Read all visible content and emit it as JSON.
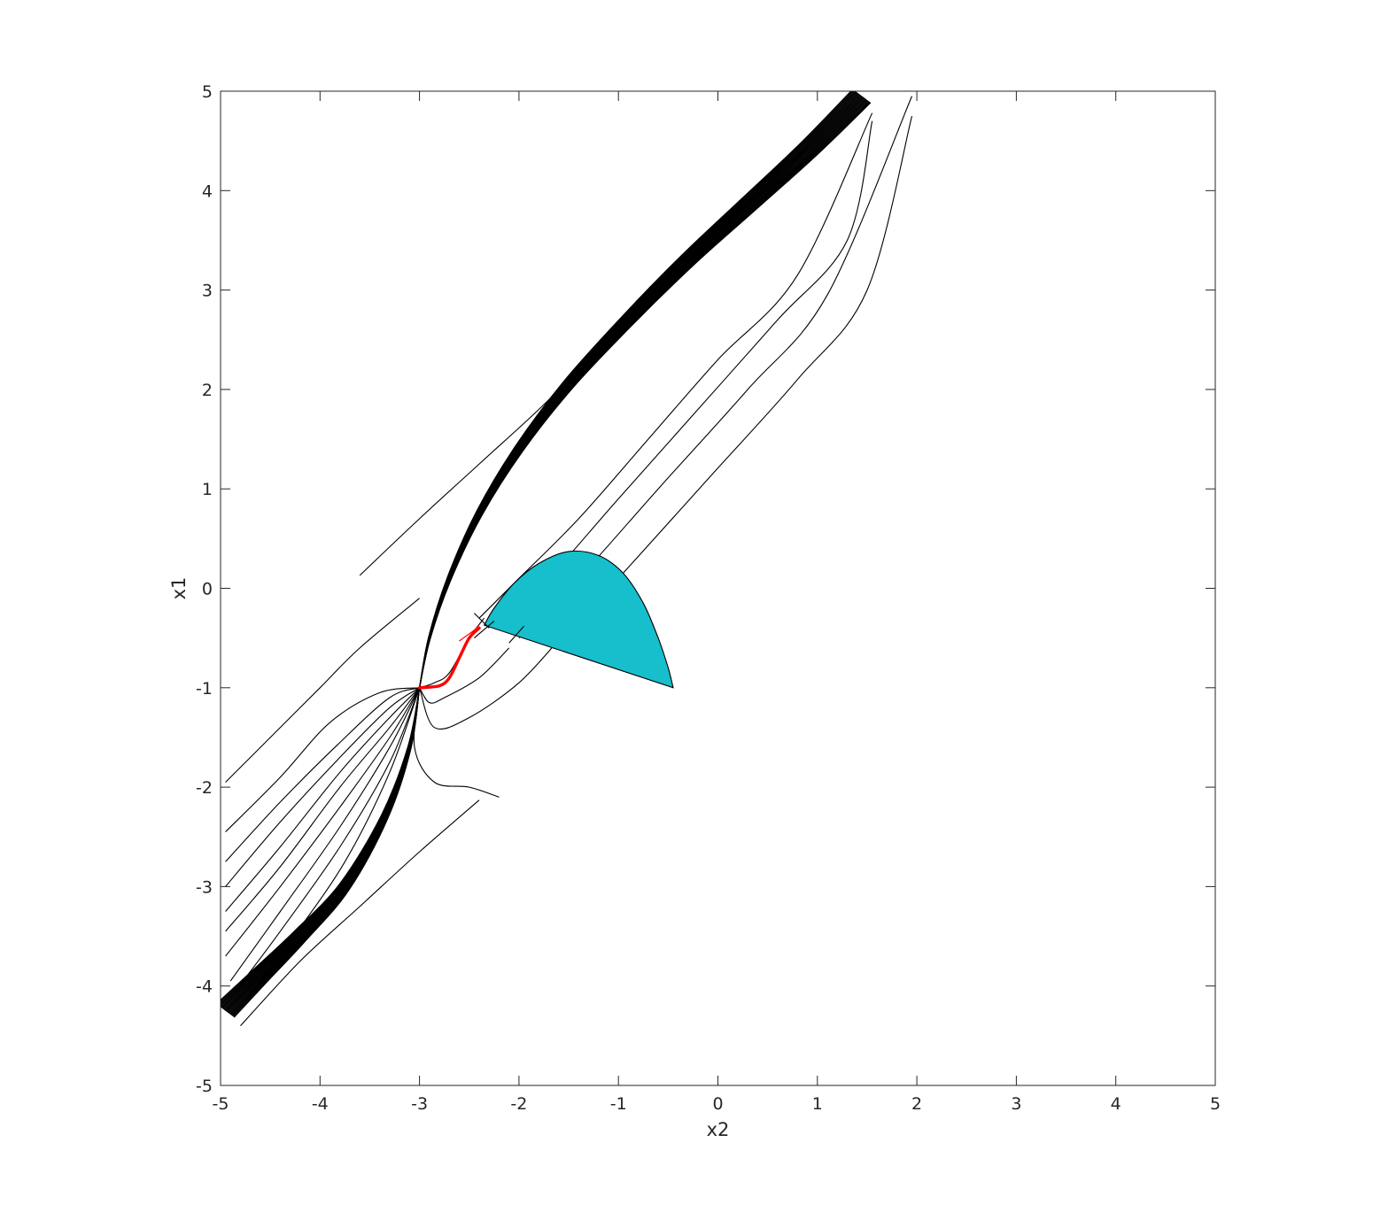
{
  "chart_data": {
    "type": "line",
    "title": "",
    "xlabel": "x2",
    "ylabel": "x1",
    "xlim": [
      -5,
      5
    ],
    "ylim": [
      -5,
      5
    ],
    "xticks": [
      "-5",
      "-4",
      "-3",
      "-2",
      "-1",
      "0",
      "1",
      "2",
      "3",
      "4",
      "5"
    ],
    "yticks": [
      "-5",
      "-4",
      "-3",
      "-2",
      "-1",
      "0",
      "1",
      "2",
      "3",
      "4",
      "5"
    ],
    "grid": false,
    "box": true,
    "colors": {
      "trajectory": "#000000",
      "highlight": "#ff0000",
      "region_fill": "#17becb",
      "region_edge": "#000000",
      "axes": "#262626"
    },
    "region": {
      "shape": "half-disc",
      "points": [
        [
          -2.35,
          -0.37
        ],
        [
          -2.25,
          -0.2
        ],
        [
          -2.05,
          0.05
        ],
        [
          -1.8,
          0.25
        ],
        [
          -1.5,
          0.37
        ],
        [
          -1.2,
          0.33
        ],
        [
          -0.95,
          0.15
        ],
        [
          -0.75,
          -0.15
        ],
        [
          -0.6,
          -0.5
        ],
        [
          -0.5,
          -0.8
        ],
        [
          -0.45,
          -1.0
        ]
      ]
    },
    "equilibrium": [
      -3.0,
      -1.0
    ],
    "band": [
      {
        "type": "dense_upper",
        "points": [
          [
            -3.0,
            -1.0
          ],
          [
            -2.9,
            -0.5
          ],
          [
            -2.7,
            0.1
          ],
          [
            -2.4,
            0.75
          ],
          [
            -2.0,
            1.4
          ],
          [
            -1.5,
            2.05
          ],
          [
            -0.9,
            2.7
          ],
          [
            -0.3,
            3.3
          ],
          [
            0.3,
            3.85
          ],
          [
            0.9,
            4.4
          ],
          [
            1.45,
            4.95
          ]
        ]
      },
      {
        "type": "dense_lower",
        "points": [
          [
            -3.0,
            -1.0
          ],
          [
            -3.1,
            -1.6
          ],
          [
            -3.35,
            -2.3
          ],
          [
            -3.75,
            -3.0
          ],
          [
            -4.2,
            -3.5
          ],
          [
            -4.6,
            -3.9
          ],
          [
            -4.95,
            -4.25
          ]
        ]
      }
    ],
    "series": [
      {
        "type": "far_upper",
        "points": [
          [
            -3.6,
            0.13
          ],
          [
            -3.0,
            0.7
          ],
          [
            -2.4,
            1.25
          ],
          [
            -1.8,
            1.8
          ],
          [
            -1.2,
            2.4
          ]
        ]
      },
      {
        "type": "far_upper",
        "points": [
          [
            -2.4,
            -0.3
          ],
          [
            -2.0,
            0.1
          ],
          [
            -1.4,
            0.7
          ],
          [
            -0.7,
            1.5
          ],
          [
            0.0,
            2.3
          ],
          [
            0.8,
            3.15
          ],
          [
            1.55,
            4.78
          ]
        ]
      },
      {
        "type": "far_upper",
        "points": [
          [
            -2.2,
            -0.4
          ],
          [
            -1.7,
            0.1
          ],
          [
            -1.0,
            0.9
          ],
          [
            -0.2,
            1.8
          ],
          [
            0.6,
            2.7
          ],
          [
            1.3,
            3.5
          ],
          [
            1.55,
            4.7
          ]
        ]
      },
      {
        "type": "far_upper",
        "points": [
          [
            -2.0,
            -0.5
          ],
          [
            -1.4,
            0.1
          ],
          [
            -0.6,
            1.0
          ],
          [
            0.3,
            2.0
          ],
          [
            1.1,
            2.95
          ],
          [
            1.95,
            4.95
          ]
        ]
      },
      {
        "type": "far_upper",
        "points": [
          [
            -1.6,
            -0.55
          ],
          [
            -1.0,
            0.1
          ],
          [
            -0.1,
            1.1
          ],
          [
            0.8,
            2.1
          ],
          [
            1.5,
            3.0
          ],
          [
            1.95,
            4.75
          ]
        ]
      },
      {
        "type": "far_lower",
        "points": [
          [
            -2.4,
            -2.13
          ],
          [
            -3.0,
            -2.65
          ],
          [
            -3.6,
            -3.2
          ],
          [
            -4.2,
            -3.75
          ],
          [
            -4.8,
            -4.4
          ]
        ]
      },
      {
        "type": "far_lower",
        "points": [
          [
            -4.95,
            -1.95
          ],
          [
            -4.5,
            -1.5
          ],
          [
            -4.0,
            -1.0
          ],
          [
            -3.6,
            -0.6
          ],
          [
            -3.0,
            -0.1
          ]
        ]
      },
      {
        "type": "funnel",
        "points": [
          [
            -2.35,
            -0.3
          ],
          [
            -2.5,
            -0.5
          ],
          [
            -2.7,
            -0.85
          ],
          [
            -2.85,
            -0.95
          ],
          [
            -3.0,
            -1.0
          ]
        ]
      },
      {
        "type": "funnel",
        "points": [
          [
            -2.1,
            -0.6
          ],
          [
            -2.4,
            -0.9
          ],
          [
            -2.75,
            -1.1
          ],
          [
            -2.9,
            -1.15
          ],
          [
            -3.0,
            -1.0
          ]
        ]
      },
      {
        "type": "funnel",
        "points": [
          [
            -1.6,
            -0.52
          ],
          [
            -2.0,
            -0.95
          ],
          [
            -2.5,
            -1.3
          ],
          [
            -2.85,
            -1.4
          ],
          [
            -3.0,
            -1.0
          ]
        ]
      },
      {
        "type": "funnel",
        "points": [
          [
            -2.2,
            -2.1
          ],
          [
            -2.5,
            -2.0
          ],
          [
            -2.85,
            -1.95
          ],
          [
            -3.05,
            -1.6
          ],
          [
            -3.0,
            -1.0
          ]
        ]
      },
      {
        "type": "funnel",
        "points": [
          [
            -4.95,
            -2.45
          ],
          [
            -4.4,
            -1.9
          ],
          [
            -3.9,
            -1.35
          ],
          [
            -3.4,
            -1.05
          ],
          [
            -3.0,
            -1.0
          ]
        ]
      },
      {
        "type": "funnel",
        "points": [
          [
            -4.95,
            -2.75
          ],
          [
            -4.4,
            -2.15
          ],
          [
            -3.8,
            -1.55
          ],
          [
            -3.3,
            -1.1
          ],
          [
            -3.0,
            -1.0
          ]
        ]
      },
      {
        "type": "funnel",
        "points": [
          [
            -4.95,
            -3.0
          ],
          [
            -4.4,
            -2.35
          ],
          [
            -3.8,
            -1.7
          ],
          [
            -3.3,
            -1.2
          ],
          [
            -3.0,
            -1.0
          ]
        ]
      },
      {
        "type": "funnel",
        "points": [
          [
            -4.95,
            -3.25
          ],
          [
            -4.4,
            -2.6
          ],
          [
            -3.8,
            -1.85
          ],
          [
            -3.3,
            -1.3
          ],
          [
            -3.0,
            -1.0
          ]
        ]
      },
      {
        "type": "funnel",
        "points": [
          [
            -4.95,
            -3.45
          ],
          [
            -4.4,
            -2.8
          ],
          [
            -3.8,
            -2.0
          ],
          [
            -3.3,
            -1.4
          ],
          [
            -3.0,
            -1.0
          ]
        ]
      },
      {
        "type": "funnel",
        "points": [
          [
            -4.95,
            -3.7
          ],
          [
            -4.4,
            -3.0
          ],
          [
            -3.8,
            -2.2
          ],
          [
            -3.3,
            -1.5
          ],
          [
            -3.0,
            -1.0
          ]
        ]
      },
      {
        "type": "funnel",
        "points": [
          [
            -4.9,
            -3.95
          ],
          [
            -4.4,
            -3.25
          ],
          [
            -3.8,
            -2.4
          ],
          [
            -3.3,
            -1.6
          ],
          [
            -3.0,
            -1.0
          ]
        ]
      },
      {
        "type": "funnel",
        "points": [
          [
            -4.85,
            -4.05
          ],
          [
            -4.4,
            -3.45
          ],
          [
            -3.8,
            -2.6
          ],
          [
            -3.3,
            -1.75
          ],
          [
            -3.0,
            -1.0
          ]
        ]
      },
      {
        "type": "funnel",
        "points": [
          [
            -4.75,
            -4.15
          ],
          [
            -4.3,
            -3.55
          ],
          [
            -3.75,
            -2.75
          ],
          [
            -3.3,
            -1.85
          ],
          [
            -3.0,
            -1.0
          ]
        ]
      }
    ],
    "highlight_path": {
      "points": [
        [
          -3.0,
          -1.0
        ],
        [
          -2.8,
          -0.98
        ],
        [
          -2.7,
          -0.9
        ],
        [
          -2.6,
          -0.7
        ],
        [
          -2.5,
          -0.5
        ],
        [
          -2.4,
          -0.4
        ]
      ]
    },
    "highlight_extra": {
      "points": [
        [
          -2.6,
          -0.53
        ],
        [
          -2.45,
          -0.42
        ],
        [
          -2.4,
          -0.37
        ]
      ]
    }
  }
}
